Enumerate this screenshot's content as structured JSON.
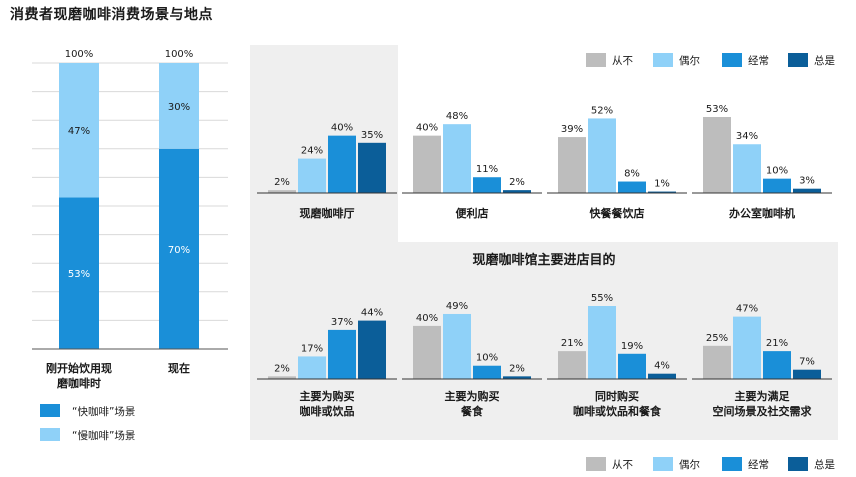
{
  "page_title": "消费者现磨咖啡消费场景与地点",
  "chart_data": [
    {
      "type": "bar",
      "stacked": true,
      "categories": [
        "刚开始饮用现磨咖啡时",
        "现在"
      ],
      "category_lines": [
        [
          "刚开始饮用现",
          "磨咖啡时"
        ],
        [
          "现在"
        ]
      ],
      "series": [
        {
          "name": "“快咖啡”场景",
          "values": [
            53,
            70
          ],
          "labels": [
            "53%",
            "70%"
          ],
          "color": "#1a8fd8"
        },
        {
          "name": "“慢咖啡”场景",
          "values": [
            47,
            30
          ],
          "labels": [
            "47%",
            "30%"
          ],
          "color": "#8fd1f8"
        }
      ],
      "total_labels": [
        "100%",
        "100%"
      ],
      "ylim": [
        0,
        100
      ],
      "grid": true,
      "legend_position": "bottom-left"
    },
    {
      "type": "bar",
      "title": "",
      "categories": [
        "现磨咖啡厅",
        "便利店",
        "快餐餐饮店",
        "办公室咖啡机"
      ],
      "series": [
        {
          "name": "从不",
          "values": [
            2,
            40,
            39,
            53
          ]
        },
        {
          "name": "偶尔",
          "values": [
            24,
            48,
            52,
            34
          ]
        },
        {
          "name": "经常",
          "values": [
            40,
            11,
            8,
            10
          ]
        },
        {
          "name": "总是",
          "values": [
            35,
            2,
            1,
            3
          ]
        }
      ],
      "legend_position": "top-right"
    },
    {
      "type": "bar",
      "title": "现磨咖啡馆主要进店目的",
      "categories": [
        "主要为购买咖啡或饮品",
        "主要为购买餐食",
        "同时购买咖啡或饮品和餐食",
        "主要为满足空间场景及社交需求"
      ],
      "category_lines": [
        [
          "主要为购买",
          "咖啡或饮品"
        ],
        [
          "主要为购买",
          "餐食"
        ],
        [
          "同时购买",
          "咖啡或饮品和餐食"
        ],
        [
          "主要为满足",
          "空间场景及社交需求"
        ]
      ],
      "series": [
        {
          "name": "从不",
          "values": [
            2,
            40,
            21,
            25
          ]
        },
        {
          "name": "偶尔",
          "values": [
            17,
            49,
            55,
            47
          ]
        },
        {
          "name": "经常",
          "values": [
            37,
            10,
            19,
            21
          ]
        },
        {
          "name": "总是",
          "values": [
            44,
            2,
            4,
            7
          ]
        }
      ],
      "legend_position": "bottom-right"
    }
  ],
  "series_colors": {
    "从不": "#bdbdbd",
    "偶尔": "#8fd1f8",
    "经常": "#1a8fd8",
    "总是": "#0b5e99"
  }
}
